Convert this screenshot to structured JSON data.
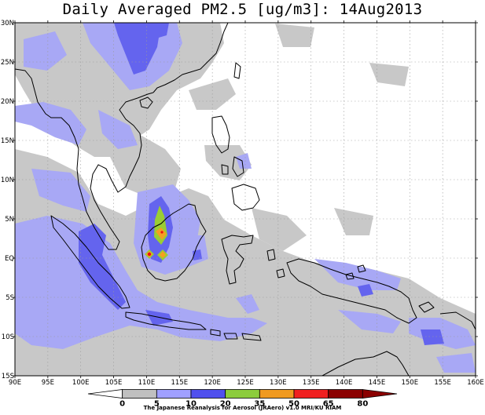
{
  "title": "Daily Averaged PM2.5 [ug/m3]: 14Aug2013",
  "footer": "The Japanese Reanalysis for Aerosol (JRAero) v1.0 MRI/KU RIAM",
  "lon_labels": [
    "90E",
    "95E",
    "100E",
    "105E",
    "110E",
    "115E",
    "120E",
    "125E",
    "130E",
    "135E",
    "140E",
    "145E",
    "150E",
    "155E",
    "160E"
  ],
  "lat_labels": [
    "30N",
    "25N",
    "20N",
    "15N",
    "10N",
    "5N",
    "EQ",
    "5S",
    "10S",
    "15S"
  ],
  "colorbar": {
    "ticks": [
      "0",
      "5",
      "10",
      "20",
      "35",
      "50",
      "65",
      "80"
    ],
    "colors": [
      "#ffffff",
      "#c0c0c0",
      "#a0a0ff",
      "#5050ee",
      "#8ccc3c",
      "#f09a20",
      "#f02020",
      "#8b0000"
    ]
  },
  "colors": {
    "gray": "#c8c8c8",
    "light_blue": "#a8a8f5",
    "blue": "#6464ee",
    "green": "#9acd32",
    "orange": "#f5a020",
    "red": "#ee1010",
    "coast": "#000000",
    "grid": "#9a9a9a"
  }
}
